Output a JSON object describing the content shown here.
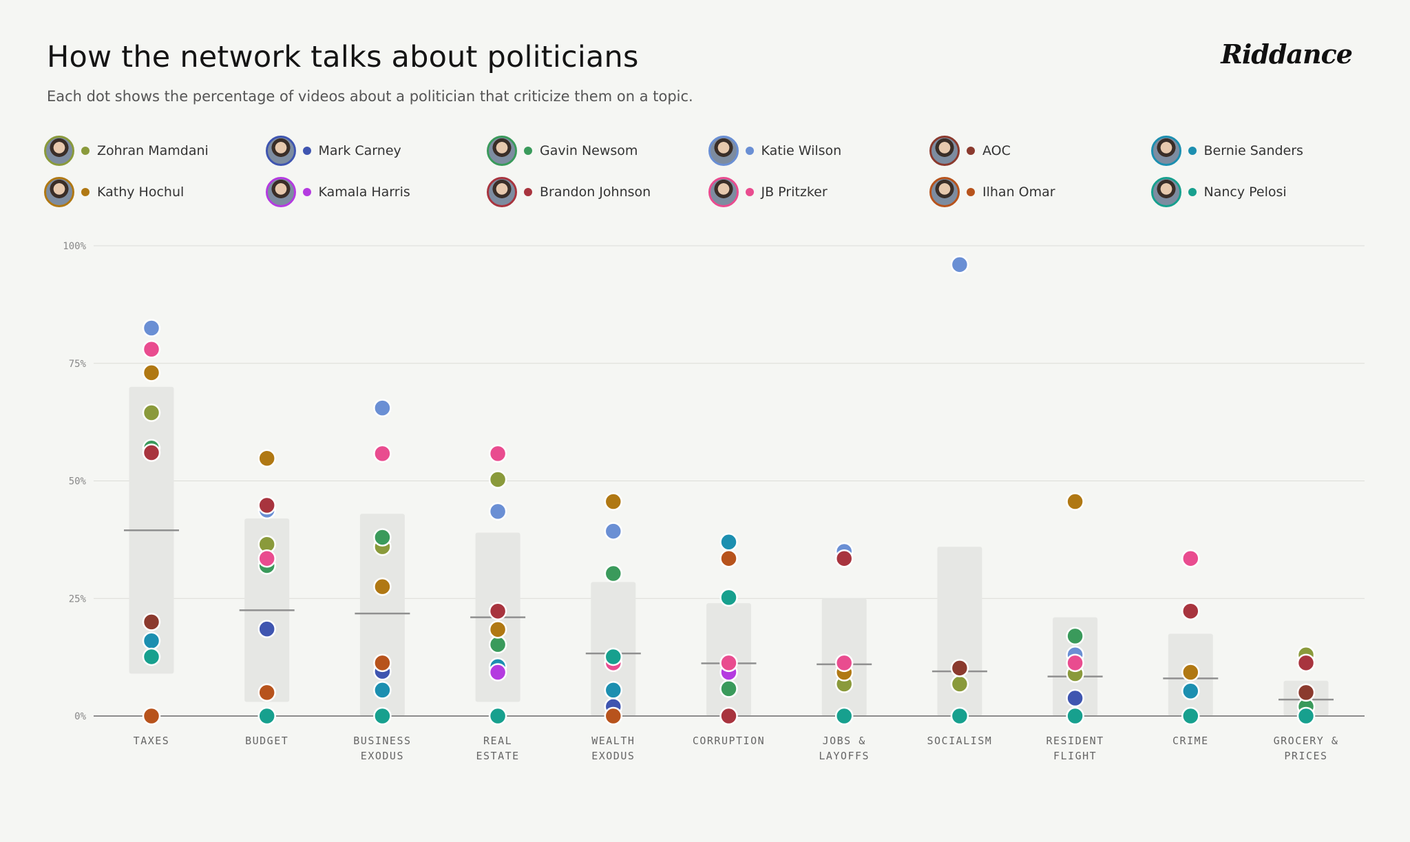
{
  "header": {
    "title": "How the network talks about politicians",
    "subtitle": "Each dot shows the percentage of videos about a politician that criticize them on a topic.",
    "brand": "Riddance"
  },
  "colors": {
    "background": "#f5f6f3",
    "band": "#e6e7e4",
    "grid": "#dcdcd8",
    "axis": "#8c8c8c",
    "median": "#8f8f8f"
  },
  "chart_data": {
    "type": "scatter",
    "ylim": [
      0,
      100
    ],
    "y_ticks": [
      {
        "value": 100,
        "label": "100%"
      },
      {
        "value": 75,
        "label": "75%"
      },
      {
        "value": 50,
        "label": "50%"
      },
      {
        "value": 25,
        "label": "25%"
      },
      {
        "value": 0,
        "label": "0%"
      }
    ],
    "grid": true,
    "legend_position": "top",
    "categories": [
      {
        "label": [
          "TAXES"
        ],
        "range": [
          9,
          70
        ],
        "median": 39.5
      },
      {
        "label": [
          "BUDGET"
        ],
        "range": [
          3,
          42
        ],
        "median": 22.5
      },
      {
        "label": [
          "BUSINESS",
          "EXODUS"
        ],
        "range": [
          0,
          43
        ],
        "median": 21.8
      },
      {
        "label": [
          "REAL",
          "ESTATE"
        ],
        "range": [
          3,
          39
        ],
        "median": 21
      },
      {
        "label": [
          "WEALTH",
          "EXODUS"
        ],
        "range": [
          0,
          28.5
        ],
        "median": 13.3
      },
      {
        "label": [
          "CORRUPTION"
        ],
        "range": [
          0,
          24
        ],
        "median": 11.2
      },
      {
        "label": [
          "JOBS &",
          "LAYOFFS"
        ],
        "range": [
          0,
          25
        ],
        "median": 11
      },
      {
        "label": [
          "SOCIALISM"
        ],
        "range": [
          0,
          36
        ],
        "median": 9.5
      },
      {
        "label": [
          "RESIDENT",
          "FLIGHT"
        ],
        "range": [
          0,
          21
        ],
        "median": 8.4
      },
      {
        "label": [
          "CRIME"
        ],
        "range": [
          0,
          17.5
        ],
        "median": 8
      },
      {
        "label": [
          "GROCERY &",
          "PRICES"
        ],
        "range": [
          0,
          7.5
        ],
        "median": 3.5
      }
    ],
    "series": [
      {
        "name": "Zohran Mamdani",
        "color": "#8a9a3b",
        "values": [
          64.5,
          36.5,
          36,
          50.3,
          null,
          null,
          6.8,
          6.8,
          9,
          null,
          13
        ]
      },
      {
        "name": "Mark Carney",
        "color": "#3f55b0",
        "values": [
          null,
          18.5,
          9.5,
          null,
          2,
          null,
          null,
          null,
          3.8,
          null,
          null
        ]
      },
      {
        "name": "Gavin Newsom",
        "color": "#3a9a5b",
        "values": [
          57,
          32,
          38,
          15.2,
          30.3,
          5.8,
          null,
          null,
          17,
          null,
          2
        ]
      },
      {
        "name": "Katie Wilson",
        "color": "#6a8fd4",
        "values": [
          82.5,
          43.8,
          65.5,
          43.5,
          39.3,
          null,
          35,
          96,
          13,
          null,
          null
        ]
      },
      {
        "name": "AOC",
        "color": "#8b3a2e",
        "values": [
          20,
          null,
          null,
          null,
          null,
          null,
          null,
          10.2,
          null,
          null,
          5
        ]
      },
      {
        "name": "Bernie Sanders",
        "color": "#1c8fb0",
        "values": [
          16,
          null,
          5.5,
          10.5,
          5.5,
          37,
          null,
          null,
          null,
          5.3,
          null
        ]
      },
      {
        "name": "Kathy Hochul",
        "color": "#b07813",
        "values": [
          73,
          54.8,
          27.5,
          18.4,
          45.6,
          null,
          9.3,
          null,
          45.6,
          9.3,
          null
        ]
      },
      {
        "name": "Kamala Harris",
        "color": "#b43be0",
        "values": [
          null,
          null,
          null,
          9.3,
          null,
          9.3,
          null,
          null,
          null,
          null,
          null
        ]
      },
      {
        "name": "Brandon Johnson",
        "color": "#a8343e",
        "values": [
          56,
          44.8,
          null,
          22.3,
          null,
          0,
          33.5,
          null,
          null,
          22.3,
          11.3
        ]
      },
      {
        "name": "JB Pritzker",
        "color": "#e94c8f",
        "values": [
          78,
          33.5,
          55.8,
          55.8,
          11.3,
          11.3,
          11.3,
          null,
          11.3,
          33.5,
          null
        ]
      },
      {
        "name": "Ilhan Omar",
        "color": "#b7531c",
        "values": [
          0,
          5,
          11.3,
          null,
          0,
          33.5,
          null,
          null,
          null,
          null,
          null
        ]
      },
      {
        "name": "Nancy Pelosi",
        "color": "#17a08e",
        "values": [
          12.6,
          0,
          0,
          0,
          12.6,
          25.2,
          0,
          0,
          0,
          0,
          0
        ]
      }
    ]
  }
}
